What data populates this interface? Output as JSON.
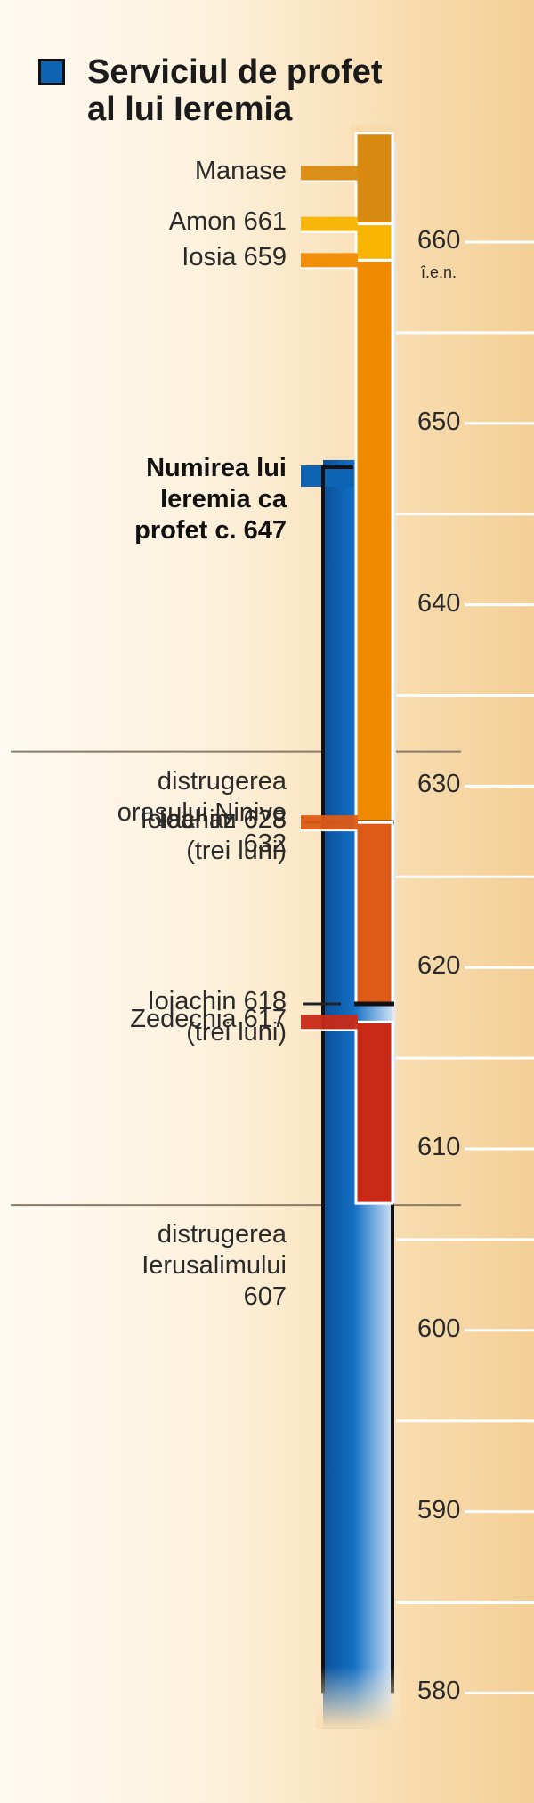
{
  "legend": {
    "label": "Serviciul de profet al lui Ieremia",
    "color": "#0f63b3",
    "line1": "Serviciul de profet",
    "line2": "al lui Ieremia"
  },
  "axis": {
    "min": 580,
    "max": 666,
    "ticks": [
      660,
      650,
      640,
      630,
      620,
      610,
      600,
      590,
      580
    ],
    "era_label": "î.e.n."
  },
  "kings": [
    {
      "name": "Manase",
      "from": 666,
      "to": 661,
      "color": "#d98a10"
    },
    {
      "name": "Amon",
      "from": 661,
      "to": 659,
      "color": "#f7b400"
    },
    {
      "name": "Iosia",
      "from": 659,
      "to": 628,
      "color": "#f08a00"
    },
    {
      "name": "Ioahaz",
      "from": 628,
      "to": 628,
      "color": "#000000"
    },
    {
      "name": "Ioiachim",
      "from": 628,
      "to": 618,
      "color": "#dd5b16"
    },
    {
      "name": "Ioiachin",
      "from": 618,
      "to": 618,
      "color": "#000000"
    },
    {
      "name": "Zedechia",
      "from": 617,
      "to": 607,
      "color": "#c82a17"
    }
  ],
  "prophecy": {
    "from": 647,
    "to": 580,
    "color": "#0f63b3"
  },
  "labels": [
    {
      "id": "manase",
      "lines": [
        "Manase"
      ],
      "year": 664,
      "style": "bar",
      "color": "#d98a10"
    },
    {
      "id": "amon",
      "lines": [
        "Amon 661"
      ],
      "year": 661,
      "style": "bar",
      "color": "#f7b400"
    },
    {
      "id": "iosia",
      "lines": [
        "Iosia 659"
      ],
      "year": 659,
      "style": "bar",
      "color": "#f08a00"
    },
    {
      "id": "numirea",
      "lines": [
        "Numirea lui",
        "Ieremia ca",
        "profet c. 647"
      ],
      "year": 647,
      "style": "bold"
    },
    {
      "id": "ninive",
      "lines": [
        "distrugerea",
        "oraşului Ninive",
        "632"
      ],
      "year": 632,
      "style": "divider"
    },
    {
      "id": "ioahaz",
      "lines": [
        "Ioahaz 628",
        "(trei luni)"
      ],
      "year": 628,
      "style": "dash"
    },
    {
      "id": "ioiachim",
      "lines": [
        "Ioiachim 628"
      ],
      "year": 628,
      "style": "bar",
      "color": "#dd5b16"
    },
    {
      "id": "ioiachin",
      "lines": [
        "Ioiachin 618",
        "(trei luni)"
      ],
      "year": 618,
      "style": "dash"
    },
    {
      "id": "zedechia",
      "lines": [
        "Zedechia 617"
      ],
      "year": 617,
      "style": "bar",
      "color": "#c82a17"
    },
    {
      "id": "ierusalim",
      "lines": [
        "distrugerea",
        "Ierusalimului",
        "607"
      ],
      "year": 607,
      "style": "divider"
    }
  ]
}
